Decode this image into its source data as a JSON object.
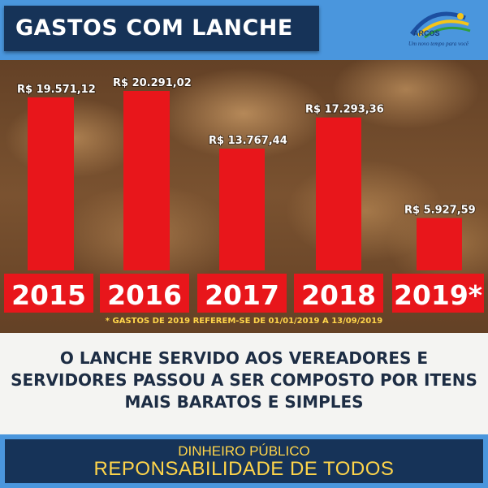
{
  "header": {
    "title": "GASTOS COM LANCHE"
  },
  "logo": {
    "name": "ARCOS",
    "slogan": "Um novo tempo para você"
  },
  "colors": {
    "bar": "#e8161b",
    "header_bg": "#163358",
    "band": "#4a96dd",
    "accent": "#ffd54a",
    "label_bg": "#e8161b"
  },
  "chart_data": {
    "type": "bar",
    "title": "GASTOS COM LANCHE",
    "categories": [
      "2015",
      "2016",
      "2017",
      "2018",
      "2019*"
    ],
    "values": [
      19571.12,
      20291.02,
      13767.44,
      17293.36,
      5927.59
    ],
    "value_labels": [
      "R$ 19.571,12",
      "R$ 20.291,02",
      "R$ 13.767,44",
      "R$ 17.293,36",
      "R$ 5.927,59"
    ],
    "ylim": [
      0,
      20291.02
    ],
    "grid": false,
    "legend": "none"
  },
  "footnote": "* GASTOS DE 2019 REFEREM-SE DE 01/01/2019 A 13/09/2019",
  "message": {
    "line1": "O LANCHE SERVIDO AOS VEREADORES E",
    "line2": "SERVIDORES PASSOU A SER COMPOSTO POR ITENS",
    "line3": "MAIS BARATOS E SIMPLES"
  },
  "footer": {
    "line1": "DINHEIRO PÚBLICO",
    "line2": "REPONSABILIDADE DE TODOS"
  }
}
